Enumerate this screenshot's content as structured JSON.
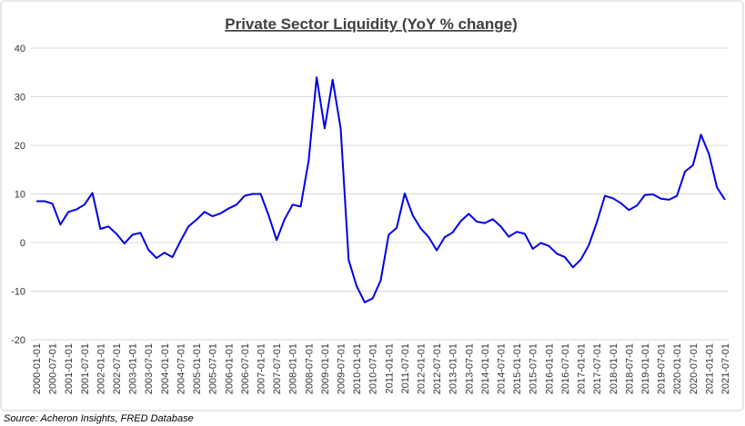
{
  "chart_data": {
    "type": "line",
    "title": "Private Sector Liquidity (YoY % change)",
    "source": "Source: Acheron Insights, FRED Database",
    "categories": [
      "2000-01-01",
      null,
      "2000-07-01",
      null,
      "2001-01-01",
      null,
      "2001-07-01",
      null,
      "2002-01-01",
      null,
      "2002-07-01",
      null,
      "2003-01-01",
      null,
      "2003-07-01",
      null,
      "2004-01-01",
      null,
      "2004-07-01",
      null,
      "2005-01-01",
      null,
      "2005-07-01",
      null,
      "2006-01-01",
      null,
      "2006-07-01",
      null,
      "2007-01-01",
      null,
      "2007-07-01",
      null,
      "2008-01-01",
      null,
      "2008-07-01",
      null,
      "2009-01-01",
      null,
      "2009-07-01",
      null,
      "2010-01-01",
      null,
      "2010-07-01",
      null,
      "2011-01-01",
      null,
      "2011-07-01",
      null,
      "2012-01-01",
      null,
      "2012-07-01",
      null,
      "2013-01-01",
      null,
      "2013-07-01",
      null,
      "2014-01-01",
      null,
      "2014-07-01",
      null,
      "2015-01-01",
      null,
      "2015-07-01",
      null,
      "2016-01-01",
      null,
      "2016-07-01",
      null,
      "2017-01-01",
      null,
      "2017-07-01",
      null,
      "2018-01-01",
      null,
      "2018-07-01",
      null,
      "2019-01-01",
      null,
      "2019-07-01",
      null,
      "2020-01-01",
      null,
      "2020-07-01",
      null,
      "2021-01-01",
      null,
      "2021-07-01"
    ],
    "series": [
      {
        "name": "Private Sector Liquidity",
        "color": "#0000e6",
        "values": [
          8.5,
          8.5,
          8.0,
          3.7,
          6.3,
          6.8,
          7.8,
          10.2,
          2.8,
          3.3,
          1.8,
          -0.2,
          1.6,
          2.0,
          -1.5,
          -3.2,
          -2.1,
          -3.0,
          0.3,
          3.3,
          4.7,
          6.3,
          5.4,
          6.0,
          7.0,
          7.8,
          9.6,
          10.0,
          10.0,
          5.6,
          0.5,
          4.8,
          7.8,
          7.4,
          16.8,
          34.0,
          23.5,
          33.5,
          23.5,
          -3.6,
          -9.0,
          -12.3,
          -11.5,
          -7.8,
          1.6,
          3.0,
          10.1,
          5.6,
          2.9,
          1.1,
          -1.6,
          1.1,
          2.1,
          4.4,
          5.9,
          4.3,
          4.0,
          4.8,
          3.3,
          1.2,
          2.2,
          1.8,
          -1.3,
          -0.1,
          -0.7,
          -2.3,
          -3.0,
          -5.1,
          -3.5,
          -0.5,
          4.2,
          9.6,
          9.1,
          8.1,
          6.7,
          7.6,
          9.8,
          9.9,
          9.0,
          8.8,
          9.6,
          14.6,
          15.9,
          22.2,
          18.2,
          11.3,
          8.8
        ]
      }
    ],
    "ylim": [
      -20,
      40
    ],
    "yticks": [
      -20,
      -10,
      0,
      10,
      20,
      30,
      40
    ],
    "grid": true,
    "legend": false
  }
}
